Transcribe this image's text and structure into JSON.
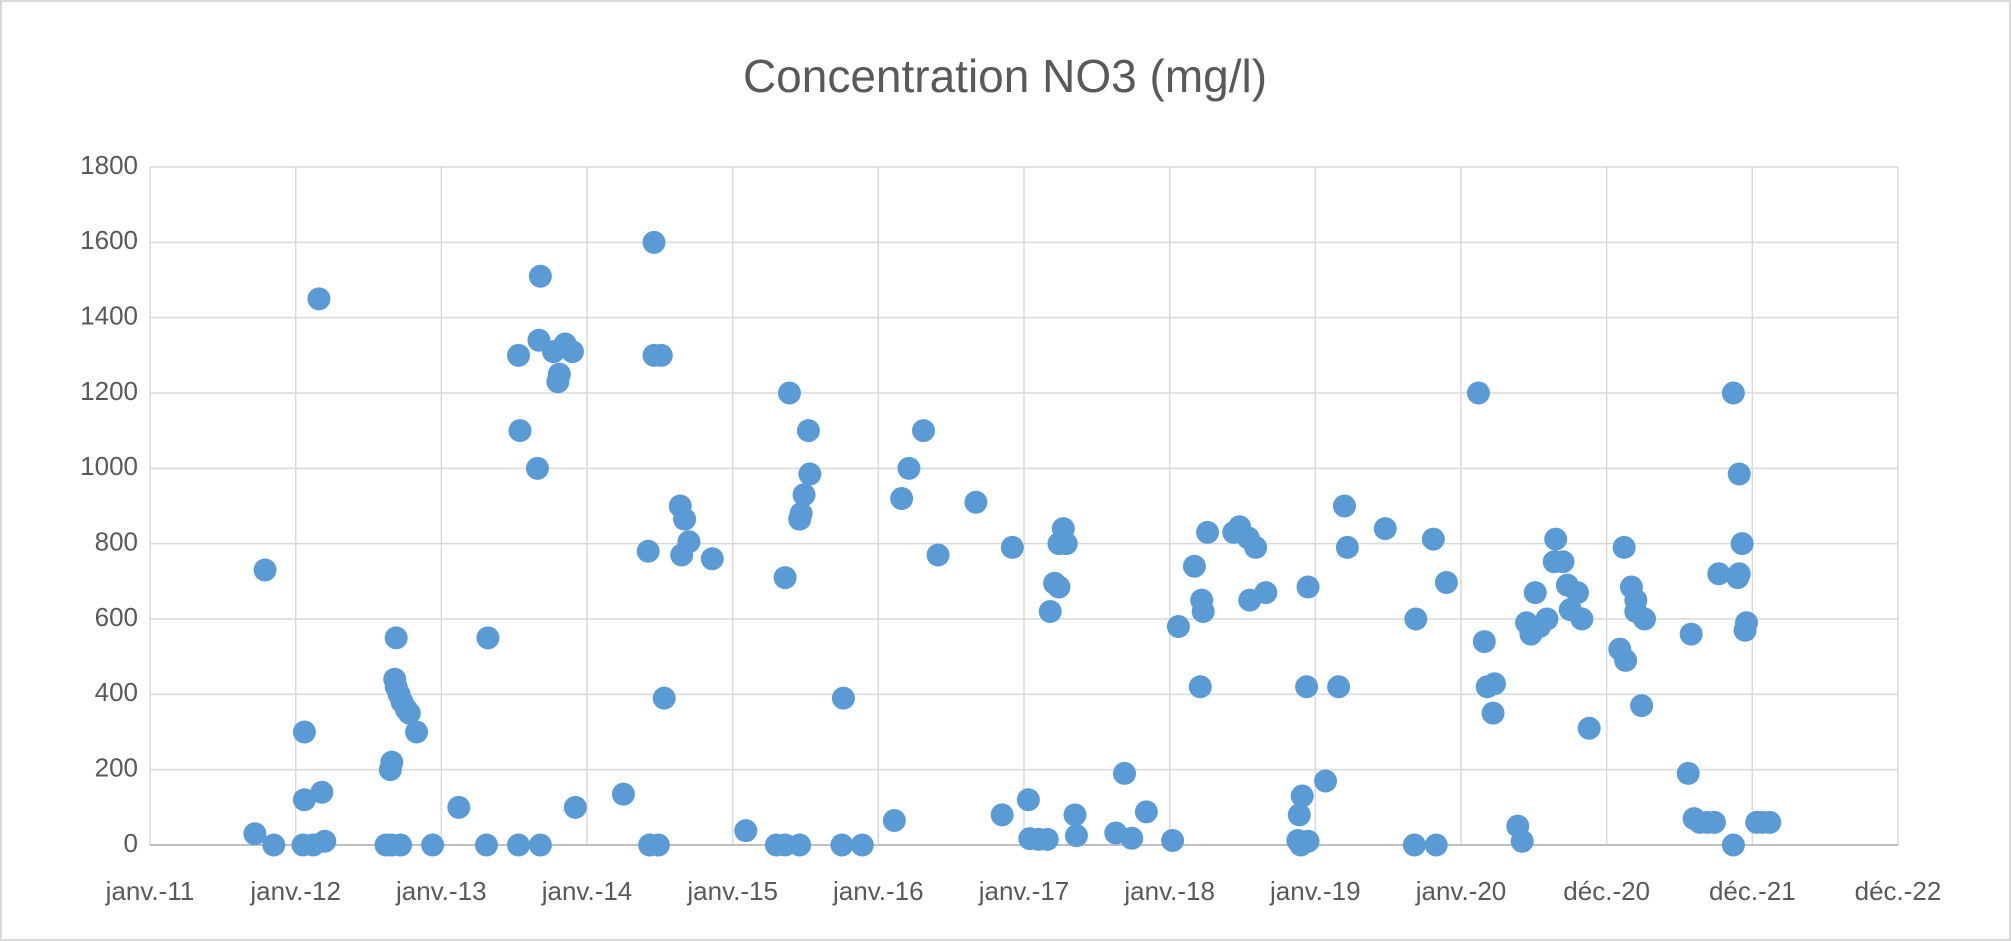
{
  "chart_data": {
    "type": "scatter",
    "title": "Concentration NO3 (mg/l)",
    "color": "#5b9bd5",
    "grid": true,
    "x": [
      2011.72,
      2011.79,
      2011.85,
      2012.06,
      2012.06,
      2012.05,
      2012.12,
      2012.16,
      2012.18,
      2012.2,
      2012.62,
      2012.65,
      2012.66,
      2012.68,
      2012.69,
      2012.69,
      2012.71,
      2012.73,
      2012.76,
      2012.78,
      2012.83,
      2012.66,
      2012.72,
      2012.94,
      2013.12,
      2013.31,
      2013.32,
      2013.53,
      2013.54,
      2013.53,
      2013.66,
      2013.67,
      2013.68,
      2013.68,
      2013.77,
      2013.8,
      2013.81,
      2013.85,
      2013.9,
      2013.92,
      2014.25,
      2014.42,
      2014.43,
      2014.46,
      2014.46,
      2014.51,
      2014.49,
      2014.53,
      2014.64,
      2014.67,
      2014.7,
      2014.65,
      2014.86,
      2015.09,
      2015.3,
      2015.36,
      2015.36,
      2015.39,
      2015.46,
      2015.47,
      2015.49,
      2015.52,
      2015.53,
      2015.46,
      2015.76,
      2015.75,
      2015.89,
      2016.11,
      2016.16,
      2016.21,
      2016.31,
      2016.41,
      2016.67,
      2016.85,
      2016.92,
      2017.03,
      2017.04,
      2017.1,
      2017.16,
      2017.18,
      2017.21,
      2017.24,
      2017.27,
      2017.24,
      2017.29,
      2017.35,
      2017.36,
      2017.63,
      2017.69,
      2017.74,
      2017.84,
      2018.02,
      2018.06,
      2018.17,
      2018.21,
      2018.22,
      2018.23,
      2018.26,
      2018.44,
      2018.48,
      2018.54,
      2018.59,
      2018.55,
      2018.66,
      2018.89,
      2018.91,
      2018.88,
      2018.9,
      2018.95,
      2018.94,
      2018.95,
      2019.07,
      2019.16,
      2019.2,
      2019.22,
      2019.48,
      2019.68,
      2019.69,
      2019.81,
      2019.83,
      2019.9,
      2020.12,
      2020.16,
      2020.18,
      2020.23,
      2020.22,
      2020.39,
      2020.42,
      2020.45,
      2020.48,
      2020.51,
      2020.54,
      2020.59,
      2020.64,
      2020.65,
      2020.7,
      2020.73,
      2020.75,
      2020.8,
      2020.83,
      2020.88,
      2021.09,
      2021.12,
      2021.13,
      2021.17,
      2021.2,
      2021.2,
      2021.24,
      2021.26,
      2021.56,
      2021.58,
      2021.6,
      2021.64,
      2021.69,
      2021.74,
      2021.77,
      2021.87,
      2021.87,
      2021.9,
      2021.91,
      2021.93,
      2021.91,
      2021.95,
      2021.96,
      2022.03,
      2022.07,
      2022.12
    ],
    "y": [
      30,
      730,
      0,
      300,
      120,
      0,
      0,
      1450,
      140,
      10,
      0,
      200,
      220,
      440,
      550,
      420,
      400,
      380,
      360,
      350,
      300,
      0,
      0,
      0,
      100,
      0,
      550,
      1300,
      1100,
      0,
      1000,
      1340,
      0,
      1510,
      1310,
      1230,
      1250,
      1330,
      1310,
      100,
      135,
      780,
      0,
      1600,
      1300,
      1300,
      0,
      390,
      900,
      865,
      805,
      770,
      760,
      38,
      0,
      0,
      710,
      1200,
      865,
      880,
      930,
      1100,
      985,
      0,
      390,
      0,
      0,
      65,
      920,
      1000,
      1100,
      770,
      910,
      80,
      790,
      120,
      17,
      15,
      15,
      620,
      695,
      685,
      840,
      800,
      800,
      80,
      25,
      32,
      190,
      18,
      88,
      12,
      580,
      740,
      420,
      650,
      620,
      830,
      830,
      845,
      815,
      790,
      650,
      670,
      80,
      130,
      12,
      0,
      10,
      420,
      685,
      170,
      420,
      900,
      790,
      840,
      0,
      600,
      812,
      0,
      697,
      1200,
      540,
      420,
      428,
      350,
      50,
      10,
      590,
      560,
      670,
      580,
      600,
      752,
      812,
      752,
      690,
      625,
      670,
      600,
      310,
      520,
      790,
      490,
      685,
      650,
      620,
      370,
      600,
      190,
      560,
      70,
      60,
      60,
      60,
      720,
      0,
      1200,
      710,
      985,
      800,
      720,
      570,
      590,
      60,
      60,
      60
    ],
    "xlim": [
      2011,
      2023
    ],
    "ylim": [
      0,
      1800
    ],
    "xticks": [
      {
        "value": 2011,
        "label": "janv.-11"
      },
      {
        "value": 2012,
        "label": "janv.-12"
      },
      {
        "value": 2013,
        "label": "janv.-13"
      },
      {
        "value": 2014,
        "label": "janv.-14"
      },
      {
        "value": 2015,
        "label": "janv.-15"
      },
      {
        "value": 2016,
        "label": "janv.-16"
      },
      {
        "value": 2017,
        "label": "janv.-17"
      },
      {
        "value": 2018,
        "label": "janv.-18"
      },
      {
        "value": 2019,
        "label": "janv.-19"
      },
      {
        "value": 2020,
        "label": "janv.-20"
      },
      {
        "value": 2021,
        "label": "déc.-20"
      },
      {
        "value": 2022,
        "label": "déc.-21"
      },
      {
        "value": 2023,
        "label": "déc.-22"
      }
    ],
    "yticks": [
      0,
      200,
      400,
      600,
      800,
      1000,
      1200,
      1400,
      1600,
      1800
    ]
  }
}
